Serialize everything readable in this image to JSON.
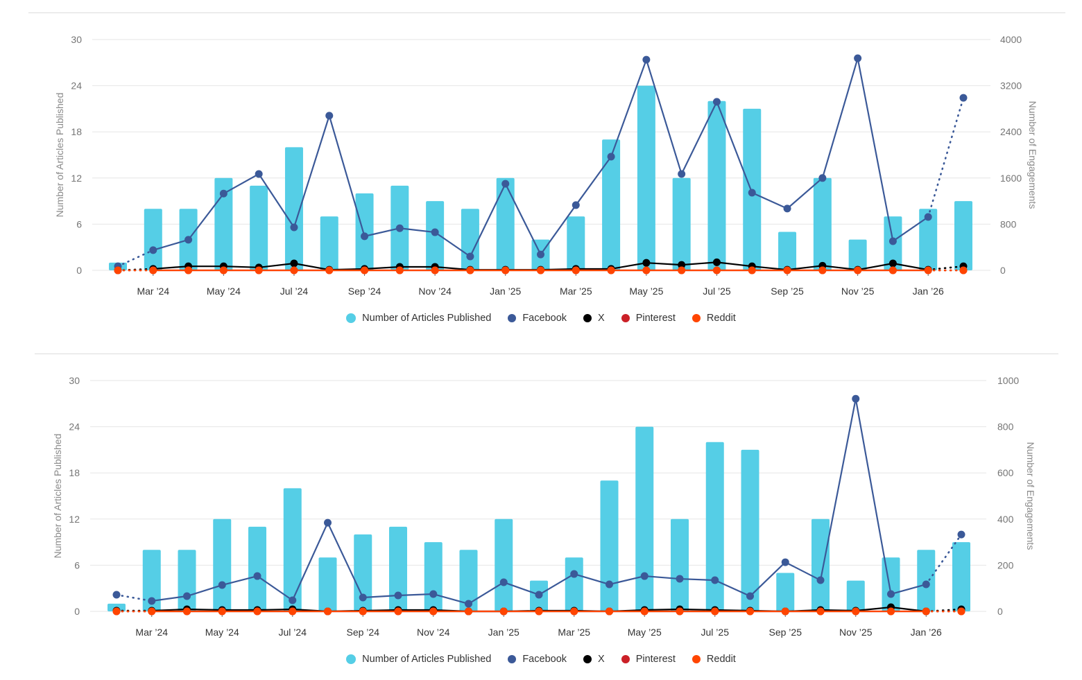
{
  "colors": {
    "articles": "#55cee6",
    "facebook": "#3b5998",
    "x": "#000000",
    "pinterest": "#cb2027",
    "reddit": "#ff4500",
    "grid": "#e6e6e6",
    "separator": "#dcdcdc"
  },
  "legend": [
    {
      "key": "articles",
      "label": "Number of Articles Published"
    },
    {
      "key": "facebook",
      "label": "Facebook"
    },
    {
      "key": "x",
      "label": "X"
    },
    {
      "key": "pinterest",
      "label": "Pinterest"
    },
    {
      "key": "reddit",
      "label": "Reddit"
    }
  ],
  "chart_data": [
    {
      "type": "bar+line",
      "title": "",
      "ylabel": "Number of Articles Published",
      "y2label": "Number of Engagements",
      "ylim": [
        0,
        30
      ],
      "y2lim": [
        0,
        4000
      ],
      "yticks": [
        0,
        6,
        12,
        18,
        24,
        30
      ],
      "y2ticks": [
        0,
        800,
        1600,
        2400,
        3200,
        4000
      ],
      "grid": true,
      "legend_position": "bottom-center",
      "categories": [
        "Feb '24",
        "Mar '24",
        "Apr '24",
        "May '24",
        "Jun '24",
        "Jul '24",
        "Aug '24",
        "Sep '24",
        "Oct '24",
        "Nov '24",
        "Dec '24",
        "Jan '25",
        "Feb '25",
        "Mar '25",
        "Apr '25",
        "May '25",
        "Jun '25",
        "Jul '25",
        "Aug '25",
        "Sep '25",
        "Oct '25",
        "Nov '25",
        "Dec '25",
        "Jan '26",
        "Feb '26"
      ],
      "xtick_labels": [
        "",
        "Mar '24",
        "",
        "May '24",
        "",
        "Jul '24",
        "",
        "Sep '24",
        "",
        "Nov '24",
        "",
        "Jan '25",
        "",
        "Mar '25",
        "",
        "May '25",
        "",
        "Jul '25",
        "",
        "Sep '25",
        "",
        "Nov '25",
        "",
        "Jan '26",
        ""
      ],
      "dotted_segments": "first and last segments of each line are dotted (partial periods)",
      "series": [
        {
          "name": "Number of Articles Published",
          "key": "articles",
          "type": "bar",
          "axis": "left",
          "values": [
            1,
            8,
            8,
            12,
            11,
            16,
            7,
            10,
            11,
            9,
            8,
            12,
            4,
            7,
            17,
            24,
            12,
            22,
            21,
            5,
            12,
            4,
            7,
            8,
            9
          ]
        },
        {
          "name": "Facebook",
          "key": "facebook",
          "type": "line",
          "axis": "right",
          "values": [
            70,
            350,
            530,
            1330,
            1670,
            745,
            2680,
            590,
            730,
            660,
            240,
            1500,
            275,
            1130,
            1970,
            3650,
            1670,
            2920,
            1345,
            1070,
            1600,
            3675,
            505,
            925,
            2990
          ]
        },
        {
          "name": "X",
          "key": "x",
          "type": "line",
          "axis": "right",
          "values": [
            0,
            25,
            70,
            70,
            50,
            120,
            10,
            25,
            60,
            60,
            10,
            10,
            10,
            25,
            25,
            130,
            95,
            140,
            70,
            10,
            80,
            10,
            120,
            10,
            70
          ]
        },
        {
          "name": "Pinterest",
          "key": "pinterest",
          "type": "line",
          "axis": "right",
          "values": [
            0,
            0,
            0,
            0,
            0,
            0,
            0,
            0,
            0,
            0,
            0,
            0,
            0,
            0,
            0,
            0,
            0,
            0,
            0,
            0,
            0,
            0,
            0,
            0,
            0
          ]
        },
        {
          "name": "Reddit",
          "key": "reddit",
          "type": "line",
          "axis": "right",
          "values": [
            0,
            0,
            0,
            0,
            0,
            0,
            0,
            0,
            0,
            0,
            0,
            0,
            0,
            0,
            0,
            0,
            0,
            0,
            0,
            0,
            0,
            0,
            0,
            0,
            0
          ]
        }
      ]
    },
    {
      "type": "bar+line",
      "title": "",
      "ylabel": "Number of Articles Published",
      "y2label": "Number of Engagements",
      "ylim": [
        0,
        30
      ],
      "y2lim": [
        0,
        1000
      ],
      "yticks": [
        0,
        6,
        12,
        18,
        24,
        30
      ],
      "y2ticks": [
        0,
        200,
        400,
        600,
        800,
        1000
      ],
      "grid": true,
      "legend_position": "bottom-center",
      "categories": [
        "Feb '24",
        "Mar '24",
        "Apr '24",
        "May '24",
        "Jun '24",
        "Jul '24",
        "Aug '24",
        "Sep '24",
        "Oct '24",
        "Nov '24",
        "Dec '24",
        "Jan '25",
        "Feb '25",
        "Mar '25",
        "Apr '25",
        "May '25",
        "Jun '25",
        "Jul '25",
        "Aug '25",
        "Sep '25",
        "Oct '25",
        "Nov '25",
        "Dec '25",
        "Jan '26",
        "Feb '26"
      ],
      "xtick_labels": [
        "",
        "Mar '24",
        "",
        "May '24",
        "",
        "Jul '24",
        "",
        "Sep '24",
        "",
        "Nov '24",
        "",
        "Jan '25",
        "",
        "Mar '25",
        "",
        "May '25",
        "",
        "Jul '25",
        "",
        "Sep '25",
        "",
        "Nov '25",
        "",
        "Jan '26",
        ""
      ],
      "dotted_segments": "first and last segments of each line are dotted (partial periods)",
      "series": [
        {
          "name": "Number of Articles Published",
          "key": "articles",
          "type": "bar",
          "axis": "left",
          "values": [
            1,
            8,
            8,
            12,
            11,
            16,
            7,
            10,
            11,
            9,
            8,
            12,
            4,
            7,
            17,
            24,
            12,
            22,
            21,
            5,
            12,
            4,
            7,
            8,
            9
          ]
        },
        {
          "name": "Facebook",
          "key": "facebook",
          "type": "line",
          "axis": "right",
          "values": [
            72,
            45,
            66,
            114,
            153,
            48,
            384,
            60,
            69,
            75,
            33,
            126,
            72,
            162,
            117,
            153,
            141,
            135,
            66,
            213,
            135,
            921,
            75,
            117,
            333
          ]
        },
        {
          "name": "X",
          "key": "x",
          "type": "line",
          "axis": "right",
          "values": [
            3,
            3,
            9,
            6,
            6,
            9,
            0,
            3,
            6,
            6,
            0,
            0,
            3,
            3,
            0,
            6,
            9,
            6,
            3,
            0,
            6,
            3,
            18,
            0,
            9
          ]
        },
        {
          "name": "Pinterest",
          "key": "pinterest",
          "type": "line",
          "axis": "right",
          "values": [
            0,
            0,
            0,
            0,
            0,
            0,
            0,
            0,
            0,
            0,
            0,
            0,
            0,
            0,
            0,
            0,
            0,
            0,
            0,
            0,
            0,
            0,
            0,
            0,
            0
          ]
        },
        {
          "name": "Reddit",
          "key": "reddit",
          "type": "line",
          "axis": "right",
          "values": [
            0,
            0,
            0,
            0,
            0,
            0,
            0,
            0,
            0,
            0,
            0,
            0,
            0,
            0,
            0,
            0,
            0,
            0,
            0,
            0,
            0,
            0,
            0,
            0,
            0
          ]
        }
      ]
    }
  ]
}
